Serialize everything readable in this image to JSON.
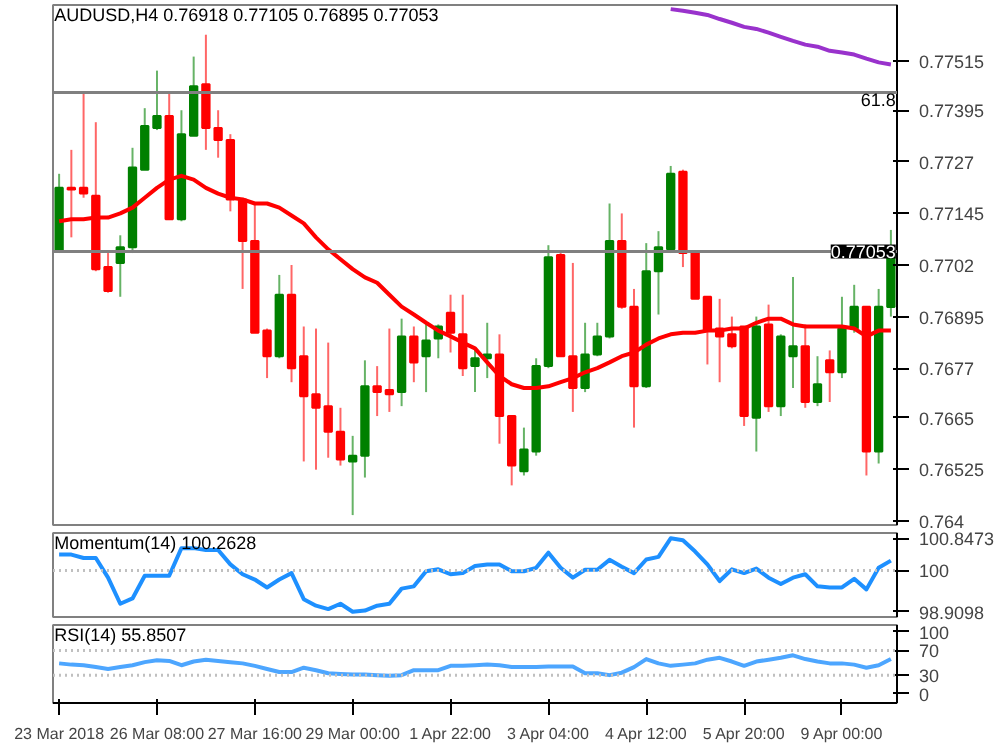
{
  "chart_data": [
    {
      "type": "candlestick",
      "title": "AUDUSD,H4  0.76918 0.77105 0.76895 0.77053",
      "tick_labels": "y",
      "grid": false,
      "categories": [
        null,
        null,
        null,
        null,
        null,
        null,
        null,
        null,
        null,
        null,
        null,
        null,
        null,
        null,
        null,
        null,
        null,
        null,
        null,
        null,
        null,
        null,
        null,
        null,
        null,
        null,
        null,
        null,
        null,
        null,
        null,
        null,
        null,
        null,
        null,
        null,
        null,
        null,
        null,
        null,
        null,
        null,
        null,
        null,
        null,
        null,
        null,
        null,
        null,
        null,
        null,
        null,
        null,
        null,
        null,
        null,
        null,
        null,
        null,
        null,
        null,
        null,
        null,
        null,
        null,
        null,
        null,
        null,
        null
      ],
      "ohlc": [
        [
          0.77054,
          0.77241,
          0.77049,
          0.77207
        ],
        [
          0.77207,
          0.77299,
          0.77087,
          0.77203
        ],
        [
          0.77207,
          0.77438,
          0.77183,
          0.77193
        ],
        [
          0.77188,
          0.77366,
          0.77005,
          0.7701
        ],
        [
          0.77015,
          0.77049,
          0.76953,
          0.76957
        ],
        [
          0.77025,
          0.77092,
          0.76943,
          0.77063
        ],
        [
          0.77063,
          0.77304,
          0.77049,
          0.77256
        ],
        [
          0.77251,
          0.774,
          0.77251,
          0.77357
        ],
        [
          0.77352,
          0.77491,
          0.77347,
          0.77381
        ],
        [
          0.77381,
          0.77438,
          0.77131,
          0.77131
        ],
        [
          0.77131,
          0.77395,
          0.77126,
          0.77337
        ],
        [
          0.77333,
          0.77525,
          0.77333,
          0.77453
        ],
        [
          0.77458,
          0.77578,
          0.77299,
          0.77352
        ],
        [
          0.77352,
          0.77395,
          0.7728,
          0.77323
        ],
        [
          0.77323,
          0.77337,
          0.7715,
          0.77179
        ],
        [
          0.77179,
          0.77183,
          0.76962,
          0.77078
        ],
        [
          0.77078,
          0.77169,
          0.76856,
          0.76856
        ],
        [
          0.76861,
          0.76866,
          0.76746,
          0.76799
        ],
        [
          0.76799,
          0.76996,
          0.76794,
          0.76948
        ],
        [
          0.76948,
          0.7702,
          0.76736,
          0.7677
        ],
        [
          0.76799,
          0.76871,
          0.76544,
          0.76702
        ],
        [
          0.76707,
          0.76866,
          0.76524,
          0.76674
        ],
        [
          0.76678,
          0.76832,
          0.76553,
          0.76616
        ],
        [
          0.76616,
          0.76674,
          0.76534,
          0.76549
        ],
        [
          0.76544,
          0.76606,
          0.76414,
          0.76558
        ],
        [
          0.76558,
          0.76789,
          0.76505,
          0.76726
        ],
        [
          0.76726,
          0.76775,
          0.76654,
          0.76712
        ],
        [
          0.76717,
          0.76866,
          0.76664,
          0.76707
        ],
        [
          0.76712,
          0.7689,
          0.76678,
          0.76847
        ],
        [
          0.76847,
          0.76871,
          0.76736,
          0.76784
        ],
        [
          0.76799,
          0.7688,
          0.76712,
          0.76837
        ],
        [
          0.76842,
          0.76876,
          0.76794,
          0.76871
        ],
        [
          0.76904,
          0.76948,
          0.76808,
          0.76856
        ],
        [
          0.76852,
          0.76948,
          0.76751,
          0.7677
        ],
        [
          0.76775,
          0.76818,
          0.76712,
          0.76794
        ],
        [
          0.76794,
          0.7688,
          0.76746,
          0.76803
        ],
        [
          0.76803,
          0.76852,
          0.76587,
          0.76654
        ],
        [
          0.76654,
          0.76654,
          0.76486,
          0.76534
        ],
        [
          0.7652,
          0.76626,
          0.7651,
          0.76573
        ],
        [
          0.76568,
          0.76794,
          0.76558,
          0.76775
        ],
        [
          0.76775,
          0.77068,
          0.7677,
          0.77039
        ],
        [
          0.77044,
          0.77054,
          0.76799,
          0.76799
        ],
        [
          0.76799,
          0.77025,
          0.76664,
          0.76722
        ],
        [
          0.76722,
          0.7688,
          0.76712,
          0.76803
        ],
        [
          0.76803,
          0.7688,
          0.76799,
          0.76847
        ],
        [
          0.76847,
          0.77169,
          0.76842,
          0.77078
        ],
        [
          0.77078,
          0.77145,
          0.76914,
          0.76919
        ],
        [
          0.76919,
          0.76962,
          0.76626,
          0.76726
        ],
        [
          0.76726,
          0.77073,
          0.76722,
          0.77005
        ],
        [
          0.77005,
          0.77102,
          0.769,
          0.77063
        ],
        [
          0.77058,
          0.7726,
          0.77049,
          0.77241
        ],
        [
          0.77246,
          0.77251,
          0.77015,
          0.77049
        ],
        [
          0.77054,
          0.77054,
          0.76938,
          0.76938
        ],
        [
          0.76943,
          0.76943,
          0.76779,
          0.76861
        ],
        [
          0.76866,
          0.76938,
          0.76736,
          0.76847
        ],
        [
          0.76852,
          0.76895,
          0.76818,
          0.76823
        ],
        [
          0.76871,
          0.76871,
          0.7663,
          0.76654
        ],
        [
          0.7665,
          0.76895,
          0.76568,
          0.76871
        ],
        [
          0.76876,
          0.76924,
          0.76664,
          0.76678
        ],
        [
          0.76678,
          0.76852,
          0.76654,
          0.76847
        ],
        [
          0.76799,
          0.76991,
          0.76722,
          0.76823
        ],
        [
          0.76823,
          0.76876,
          0.76674,
          0.76688
        ],
        [
          0.76688,
          0.76799,
          0.76678,
          0.76731
        ],
        [
          0.76789,
          0.76813,
          0.76688,
          0.7676
        ],
        [
          0.7676,
          0.76943,
          0.76746,
          0.76866
        ],
        [
          0.76866,
          0.76972,
          0.76856,
          0.76919
        ],
        [
          0.76919,
          0.76919,
          0.7651,
          0.76568
        ],
        [
          0.76568,
          0.76962,
          0.76539,
          0.76919
        ],
        [
          0.76918,
          0.77105,
          0.76895,
          0.77053
        ]
      ],
      "colors": [
        "#008000",
        "#ff0000",
        "#ff0000",
        "#ff0000",
        "#ff0000",
        "#008000",
        "#008000",
        "#008000",
        "#008000",
        "#ff0000",
        "#008000",
        "#008000",
        "#ff0000",
        "#ff0000",
        "#ff0000",
        "#ff0000",
        "#ff0000",
        "#ff0000",
        "#008000",
        "#ff0000",
        "#ff0000",
        "#ff0000",
        "#ff0000",
        "#ff0000",
        "#008000",
        "#008000",
        "#ff0000",
        "#ff0000",
        "#008000",
        "#ff0000",
        "#008000",
        "#008000",
        "#ff0000",
        "#ff0000",
        "#008000",
        "#008000",
        "#ff0000",
        "#ff0000",
        "#008000",
        "#008000",
        "#008000",
        "#ff0000",
        "#ff0000",
        "#008000",
        "#008000",
        "#008000",
        "#ff0000",
        "#ff0000",
        "#008000",
        "#008000",
        "#008000",
        "#ff0000",
        "#ff0000",
        "#ff0000",
        "#ff0000",
        "#ff0000",
        "#ff0000",
        "#008000",
        "#ff0000",
        "#008000",
        "#008000",
        "#ff0000",
        "#008000",
        "#ff0000",
        "#008000",
        "#008000",
        "#ff0000",
        "#008000",
        "#008000"
      ],
      "series": [
        {
          "type": "line",
          "color": "#ff0000",
          "values": [
            0.77126,
            0.77131,
            0.77131,
            0.77135,
            0.77135,
            0.77145,
            0.77159,
            0.77183,
            0.77207,
            0.77227,
            0.77236,
            0.77227,
            0.77207,
            0.77193,
            0.77183,
            0.77179,
            0.77169,
            0.77169,
            0.77159,
            0.7714,
            0.77121,
            0.77087,
            0.77058,
            0.77034,
            0.7701,
            0.7699,
            0.76977,
            0.76948,
            0.76919,
            0.769,
            0.7688,
            0.76861,
            0.76847,
            0.76832,
            0.76818,
            0.76784,
            0.76751,
            0.76731,
            0.76722,
            0.76722,
            0.76726,
            0.76736,
            0.76746,
            0.7676,
            0.7677,
            0.76784,
            0.76799,
            0.76808,
            0.76827,
            0.76842,
            0.76852,
            0.76856,
            0.76856,
            0.76861,
            0.76861,
            0.76866,
            0.76866,
            0.7688,
            0.7689,
            0.7689,
            0.76876,
            0.76871,
            0.76871,
            0.76871,
            0.76871,
            0.76866,
            0.76847,
            0.76861,
            0.76861
          ]
        },
        {
          "type": "line",
          "color": "#9932cc",
          "values": [
            null,
            null,
            null,
            null,
            null,
            null,
            null,
            null,
            null,
            null,
            null,
            null,
            null,
            null,
            null,
            null,
            null,
            null,
            null,
            null,
            null,
            null,
            null,
            null,
            null,
            null,
            null,
            null,
            null,
            null,
            null,
            null,
            null,
            null,
            null,
            null,
            null,
            null,
            null,
            null,
            null,
            null,
            null,
            null,
            null,
            null,
            null,
            null,
            null,
            null,
            0.7764,
            0.77636,
            0.77631,
            0.77626,
            0.77616,
            0.77607,
            0.77597,
            0.77592,
            0.77583,
            0.77573,
            0.77563,
            0.77554,
            0.77549,
            0.77539,
            0.77535,
            0.7753,
            0.7752,
            0.77511,
            0.77506
          ]
        }
      ],
      "ylim": [
        0.7639,
        0.7765
      ],
      "yticks": [
        0.77515,
        0.77395,
        0.7727,
        0.77145,
        0.7702,
        0.76895,
        0.7677,
        0.7665,
        0.76525,
        0.764
      ],
      "annotations": [
        {
          "text": "61.8",
          "y": 0.77438
        }
      ],
      "ref_lines": [
        {
          "axis": "y",
          "value": 0.77438,
          "color": "#808080"
        },
        {
          "axis": "y",
          "value": 0.77053,
          "label": "0.77053",
          "color": "#808080"
        }
      ]
    },
    {
      "type": "line",
      "title": "Momentum(14) 100.2628",
      "tick_labels": "y",
      "grid": false,
      "categories": [
        null,
        null,
        null,
        null,
        null,
        null,
        null,
        null,
        null,
        null,
        null,
        null,
        null,
        null,
        null,
        null,
        null,
        null,
        null,
        null,
        null,
        null,
        null,
        null,
        null,
        null,
        null,
        null,
        null,
        null,
        null,
        null,
        null,
        null,
        null,
        null,
        null,
        null,
        null,
        null,
        null,
        null,
        null,
        null,
        null,
        null,
        null,
        null,
        null,
        null,
        null,
        null,
        null,
        null,
        null,
        null,
        null,
        null,
        null,
        null,
        null,
        null,
        null,
        null,
        null,
        null,
        null,
        null,
        null
      ],
      "series": [
        {
          "color": "#1e90ff",
          "values": [
            100.42,
            100.42,
            100.33,
            100.33,
            99.81,
            99.12,
            99.26,
            99.86,
            99.86,
            99.86,
            100.59,
            100.59,
            100.54,
            100.54,
            100.16,
            99.9,
            99.76,
            99.55,
            99.76,
            99.93,
            99.24,
            99.07,
            98.98,
            99.12,
            98.91,
            98.94,
            99.07,
            99.12,
            99.52,
            99.58,
            99.98,
            100.03,
            99.9,
            99.93,
            100.12,
            100.16,
            100.16,
            99.98,
            99.98,
            100.07,
            100.47,
            100.07,
            99.81,
            100.02,
            100.02,
            100.28,
            100.1,
            99.93,
            100.29,
            100.36,
            100.85,
            100.8,
            100.5,
            100.16,
            99.72,
            100.03,
            99.93,
            100.05,
            99.81,
            99.64,
            99.81,
            99.9,
            99.58,
            99.55,
            99.55,
            99.78,
            99.5,
            100.07,
            100.26
          ]
        }
      ],
      "ylim": [
        98.77,
        100.99
      ],
      "yticks": [
        100.8473,
        100,
        98.9098
      ],
      "ref_lines": [
        {
          "axis": "y",
          "value": 100,
          "line_style": "dotted",
          "color": "#c0c0c0"
        }
      ]
    },
    {
      "type": "line",
      "title": "RSI(14) 55.8507",
      "grid": false,
      "categories": [
        "23 Mar 2018",
        null,
        null,
        null,
        null,
        null,
        null,
        null,
        "26 Mar 08:00",
        null,
        null,
        null,
        null,
        null,
        null,
        null,
        "27 Mar 16:00",
        null,
        null,
        null,
        null,
        null,
        null,
        null,
        "29 Mar 00:00",
        null,
        null,
        null,
        null,
        null,
        null,
        null,
        "1 Apr 22:00",
        null,
        null,
        null,
        null,
        null,
        null,
        null,
        "3 Apr 04:00",
        null,
        null,
        null,
        null,
        null,
        null,
        null,
        "4 Apr 12:00",
        null,
        null,
        null,
        null,
        null,
        null,
        null,
        "5 Apr 20:00",
        null,
        null,
        null,
        null,
        null,
        null,
        null,
        "9 Apr 00:00",
        null,
        null,
        null,
        null
      ],
      "series": [
        {
          "color": "#4da6ff",
          "values": [
            49,
            47,
            46,
            43,
            40,
            43,
            46,
            51,
            54,
            53,
            46,
            52,
            55,
            53,
            51,
            49,
            45,
            40,
            35,
            35,
            42,
            38,
            33,
            32,
            31,
            31,
            30,
            29,
            30,
            38,
            38,
            38,
            45,
            45,
            46,
            47,
            46,
            43,
            43,
            43,
            44,
            44,
            44,
            33,
            33,
            30,
            34,
            43,
            56,
            49,
            45,
            47,
            49,
            55,
            58,
            52,
            45,
            52,
            55,
            58,
            62,
            56,
            52,
            49,
            49,
            47,
            42,
            46,
            56
          ]
        }
      ],
      "ylim": [
        -15,
        111
      ],
      "yticks": [
        100,
        70,
        30,
        0
      ],
      "ref_lines": [
        {
          "axis": "y",
          "value": 70,
          "line_style": "dotted",
          "color": "#c0c0c0"
        },
        {
          "axis": "y",
          "value": 30,
          "line_style": "dotted",
          "color": "#c0c0c0"
        }
      ]
    }
  ]
}
